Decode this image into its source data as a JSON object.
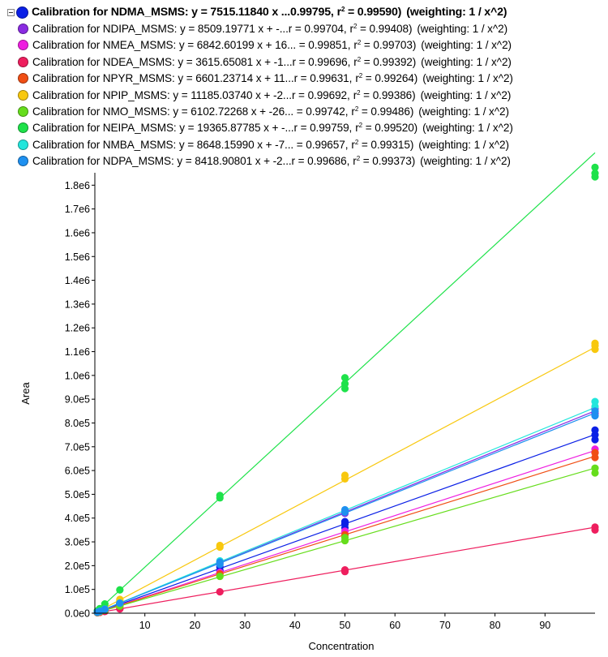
{
  "legend": [
    {
      "name": "Calibration for NDMA_MSMS: y = 7515.11840 x ...0.99795,",
      "r2": "0.99590)",
      "weighting": "(weighting: 1 / x^2)",
      "color": "#0a1fe6",
      "bold": true,
      "toggle": true
    },
    {
      "name": "Calibration for NDIPA_MSMS: y = 8509.19771 x + -...r = 0.99704,",
      "r2": "0.99408)",
      "weighting": "(weighting: 1 / x^2)",
      "color": "#8a2be2"
    },
    {
      "name": "Calibration for NMEA_MSMS: y = 6842.60199 x + 16... = 0.99851,",
      "r2": "0.99703)",
      "weighting": "(weighting: 1 / x^2)",
      "color": "#ee1ee0"
    },
    {
      "name": "Calibration for NDEA_MSMS: y = 3615.65081 x + -1...r = 0.99696,",
      "r2": "0.99392)",
      "weighting": "(weighting: 1 / x^2)",
      "color": "#ee1e5e"
    },
    {
      "name": "Calibration for NPYR_MSMS: y = 6601.23714 x + 11...r = 0.99631,",
      "r2": "0.99264)",
      "weighting": "(weighting: 1 / x^2)",
      "color": "#f04e14"
    },
    {
      "name": "Calibration for NPIP_MSMS: y = 11185.03740 x + -2...r = 0.99692,",
      "r2": "0.99386)",
      "weighting": "(weighting: 1 / x^2)",
      "color": "#f8c80e"
    },
    {
      "name": "Calibration for NMO_MSMS: y = 6102.72268 x + -26... = 0.99742,",
      "r2": "0.99486)",
      "weighting": "(weighting: 1 / x^2)",
      "color": "#66dd1c"
    },
    {
      "name": "Calibration for NEIPA_MSMS: y = 19365.87785 x + -...r = 0.99759,",
      "r2": "0.99520)",
      "weighting": "(weighting: 1 / x^2)",
      "color": "#1ee24a"
    },
    {
      "name": "Calibration for NMBA_MSMS: y = 8648.15990 x + -7... = 0.99657,",
      "r2": "0.99315)",
      "weighting": "(weighting: 1 / x^2)",
      "color": "#22e6dc"
    },
    {
      "name": "Calibration for NDPA_MSMS: y = 8418.90801 x + -2...r = 0.99686,",
      "r2": "0.99373)",
      "weighting": "(weighting: 1 / x^2)",
      "color": "#1e90f0"
    }
  ],
  "r2_label": "r",
  "chart_data": {
    "type": "scatter",
    "xlabel": "Concentration",
    "ylabel": "Area",
    "xlim": [
      0,
      100
    ],
    "ylim": [
      0,
      1900000
    ],
    "x_ticks": [
      10,
      20,
      30,
      40,
      50,
      60,
      70,
      80,
      90
    ],
    "x_tick_labels": [
      "10",
      "20",
      "30",
      "40",
      "50",
      "60",
      "70",
      "80",
      "90"
    ],
    "y_ticks": [
      0,
      100000,
      200000,
      300000,
      400000,
      500000,
      600000,
      700000,
      800000,
      900000,
      1000000,
      1100000,
      1200000,
      1300000,
      1400000,
      1500000,
      1600000,
      1700000,
      1800000
    ],
    "y_tick_labels": [
      "0.0e0",
      "1.0e5",
      "2.0e5",
      "3.0e5",
      "4.0e5",
      "5.0e5",
      "6.0e5",
      "7.0e5",
      "8.0e5",
      "9.0e5",
      "1.0e6",
      "1.1e6",
      "1.2e6",
      "1.3e6",
      "1.4e6",
      "1.5e6",
      "1.6e6",
      "1.7e6",
      "1.8e6"
    ],
    "grid": false,
    "series": [
      {
        "name": "NDMA_MSMS",
        "color": "#0a1fe6",
        "fit": {
          "x": [
            0.5,
            100
          ],
          "y": [
            3760,
            751500
          ]
        },
        "x": [
          0.5,
          1,
          2,
          5,
          5,
          25,
          25,
          50,
          50,
          50,
          100,
          100,
          100
        ],
        "y": [
          3800,
          7500,
          15000,
          37000,
          40000,
          180000,
          195000,
          360000,
          375000,
          385000,
          730000,
          750000,
          770000
        ]
      },
      {
        "name": "NDIPA_MSMS",
        "color": "#8a2be2",
        "fit": {
          "x": [
            0.5,
            100
          ],
          "y": [
            4250,
            850900
          ]
        },
        "x": [
          0.5,
          1,
          2,
          5,
          25,
          50,
          100,
          100
        ],
        "y": [
          4200,
          8500,
          17000,
          42000,
          210000,
          420000,
          840000,
          860000
        ]
      },
      {
        "name": "NMEA_MSMS",
        "color": "#ee1ee0",
        "fit": {
          "x": [
            0.5,
            100
          ],
          "y": [
            3420,
            684300
          ]
        },
        "x": [
          0.5,
          1,
          2,
          5,
          25,
          50,
          100,
          100
        ],
        "y": [
          3400,
          6800,
          13700,
          34000,
          172000,
          345000,
          675000,
          690000
        ]
      },
      {
        "name": "NDEA_MSMS",
        "color": "#ee1e5e",
        "fit": {
          "x": [
            0.5,
            100
          ],
          "y": [
            1800,
            361600
          ]
        },
        "x": [
          0.5,
          1,
          2,
          5,
          5,
          25,
          50,
          50,
          100,
          100
        ],
        "y": [
          1800,
          3600,
          7200,
          18000,
          20000,
          90000,
          175000,
          182000,
          350000,
          362000
        ]
      },
      {
        "name": "NPYR_MSMS",
        "color": "#f04e14",
        "fit": {
          "x": [
            0.5,
            100
          ],
          "y": [
            3300,
            660100
          ]
        },
        "x": [
          0.5,
          1,
          2,
          5,
          25,
          50,
          100,
          100
        ],
        "y": [
          3300,
          6600,
          13200,
          33000,
          165000,
          330000,
          655000,
          675000
        ]
      },
      {
        "name": "NPIP_MSMS",
        "color": "#f8c80e",
        "fit": {
          "x": [
            0.5,
            100
          ],
          "y": [
            5590,
            1118500
          ]
        },
        "x": [
          0.5,
          1,
          2,
          5,
          5,
          25,
          25,
          50,
          50,
          100,
          100,
          100
        ],
        "y": [
          5600,
          11200,
          22400,
          52000,
          58000,
          278000,
          285000,
          565000,
          580000,
          1110000,
          1125000,
          1135000
        ]
      },
      {
        "name": "NMO_MSMS",
        "color": "#66dd1c",
        "fit": {
          "x": [
            0.5,
            100
          ],
          "y": [
            3050,
            610300
          ]
        },
        "x": [
          0.5,
          1,
          2,
          5,
          25,
          50,
          50,
          100,
          100
        ],
        "y": [
          3000,
          6100,
          12200,
          30000,
          155000,
          305000,
          318000,
          590000,
          610000
        ]
      },
      {
        "name": "NEIPA_MSMS",
        "color": "#1ee24a",
        "fit": {
          "x": [
            0.5,
            100
          ],
          "y": [
            9680,
            1936600
          ]
        },
        "x": [
          0.5,
          1,
          2,
          5,
          25,
          25,
          50,
          50,
          50,
          100,
          100,
          100
        ],
        "y": [
          9700,
          19400,
          38700,
          98000,
          485000,
          495000,
          945000,
          965000,
          990000,
          1835000,
          1850000,
          1875000
        ]
      },
      {
        "name": "NMBA_MSMS",
        "color": "#22e6dc",
        "fit": {
          "x": [
            0.5,
            100
          ],
          "y": [
            4320,
            864800
          ]
        },
        "x": [
          0.5,
          1,
          2,
          5,
          25,
          50,
          100,
          100
        ],
        "y": [
          4300,
          8600,
          17300,
          43000,
          220000,
          430000,
          870000,
          890000
        ]
      },
      {
        "name": "NDPA_MSMS",
        "color": "#1e90f0",
        "fit": {
          "x": [
            0.5,
            100
          ],
          "y": [
            4210,
            841900
          ]
        },
        "x": [
          0.5,
          1,
          2,
          5,
          25,
          25,
          50,
          50,
          100,
          100
        ],
        "y": [
          4200,
          8400,
          16800,
          42000,
          205000,
          215000,
          425000,
          435000,
          830000,
          850000
        ]
      }
    ]
  }
}
